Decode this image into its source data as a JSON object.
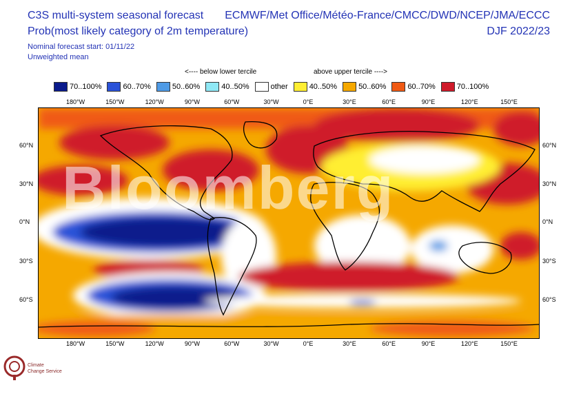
{
  "header": {
    "title": "C3S multi-system seasonal forecast",
    "subtitle": "Prob(most likely category of 2m temperature)",
    "start": "Nominal forecast start: 01/11/22",
    "weighting": "Unweighted mean",
    "centres": "ECMWF/Met Office/Météo-France/CMCC/DWD/NCEP/JMA/ECCC",
    "season": "DJF 2022/23"
  },
  "tercile_labels": {
    "below": "<---- below lower tercile",
    "above": "above upper tercile ---->"
  },
  "legend": [
    {
      "label": "70..100%",
      "color": "#0a1a8c"
    },
    {
      "label": "60..70%",
      "color": "#2a52d8"
    },
    {
      "label": "50..60%",
      "color": "#4f9be6"
    },
    {
      "label": "40..50%",
      "color": "#8fe8f5"
    },
    {
      "label": "other",
      "color": "#ffffff"
    },
    {
      "label": "40..50%",
      "color": "#ffee33"
    },
    {
      "label": "50..60%",
      "color": "#f5a800"
    },
    {
      "label": "60..70%",
      "color": "#f05a14"
    },
    {
      "label": "70..100%",
      "color": "#cf1a2a"
    }
  ],
  "lon_ticks": [
    "180°W",
    "150°W",
    "120°W",
    "90°W",
    "60°W",
    "30°W",
    "0°E",
    "30°E",
    "60°E",
    "90°E",
    "120°E",
    "150°E"
  ],
  "lat_ticks_left": [
    "60°N",
    "30°N",
    "0°N",
    "30°S",
    "60°S"
  ],
  "lat_ticks_right": [
    "60°N",
    "30°N",
    "0°N",
    "30°S",
    "60°S"
  ],
  "watermark": "Bloomberg",
  "logo": {
    "line1": "Climate",
    "line2": "Change Service"
  }
}
